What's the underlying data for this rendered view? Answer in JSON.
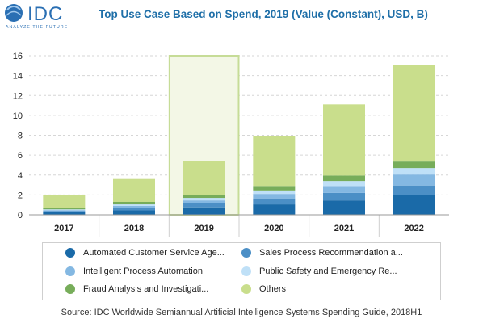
{
  "logo": {
    "text": "IDC",
    "tagline": "ANALYZE THE FUTURE"
  },
  "title": "Top Use Case Based on Spend, 2019 (Value (Constant), USD, B)",
  "source": "Source: IDC Worldwide Semiannual Artificial Intelligence Systems Spending Guide, 2018H1",
  "colors": {
    "brand_blue": "#1f6fa8",
    "highlight_fill": "#f3f7e6",
    "highlight_stroke": "#c6dc97"
  },
  "chart_data": {
    "type": "bar",
    "stacked": true,
    "title": "Top Use Case Based on Spend, 2019 (Value (Constant), USD, B)",
    "categories": [
      "2017",
      "2018",
      "2019",
      "2020",
      "2021",
      "2022"
    ],
    "highlighted_category": "2019",
    "ylim": [
      0,
      16
    ],
    "yticks": [
      "0",
      "2",
      "4",
      "6",
      "8",
      "10",
      "12",
      "14",
      "16"
    ],
    "grid": true,
    "legend_position": "bottom",
    "series": [
      {
        "name": "Automated Customer Service Age...",
        "color": "#1a6aa8",
        "values": [
          0.25,
          0.45,
          0.75,
          1.05,
          1.45,
          1.95
        ]
      },
      {
        "name": "Sales Process Recommendation a...",
        "color": "#4b8fc6",
        "values": [
          0.12,
          0.25,
          0.4,
          0.6,
          0.75,
          1.0
        ]
      },
      {
        "name": "Intelligent Process Automation",
        "color": "#84b8e2",
        "values": [
          0.1,
          0.2,
          0.3,
          0.45,
          0.7,
          1.1
        ]
      },
      {
        "name": "Public Safety and Emergency Re...",
        "color": "#bfe0f7",
        "values": [
          0.08,
          0.15,
          0.25,
          0.35,
          0.5,
          0.65
        ]
      },
      {
        "name": "Fraud Analysis and Investigati...",
        "color": "#77ad5a",
        "values": [
          0.15,
          0.25,
          0.3,
          0.45,
          0.55,
          0.65
        ]
      },
      {
        "name": "Others",
        "color": "#c9de8c",
        "values": [
          1.25,
          2.3,
          3.4,
          5.0,
          7.15,
          9.7
        ]
      }
    ]
  }
}
